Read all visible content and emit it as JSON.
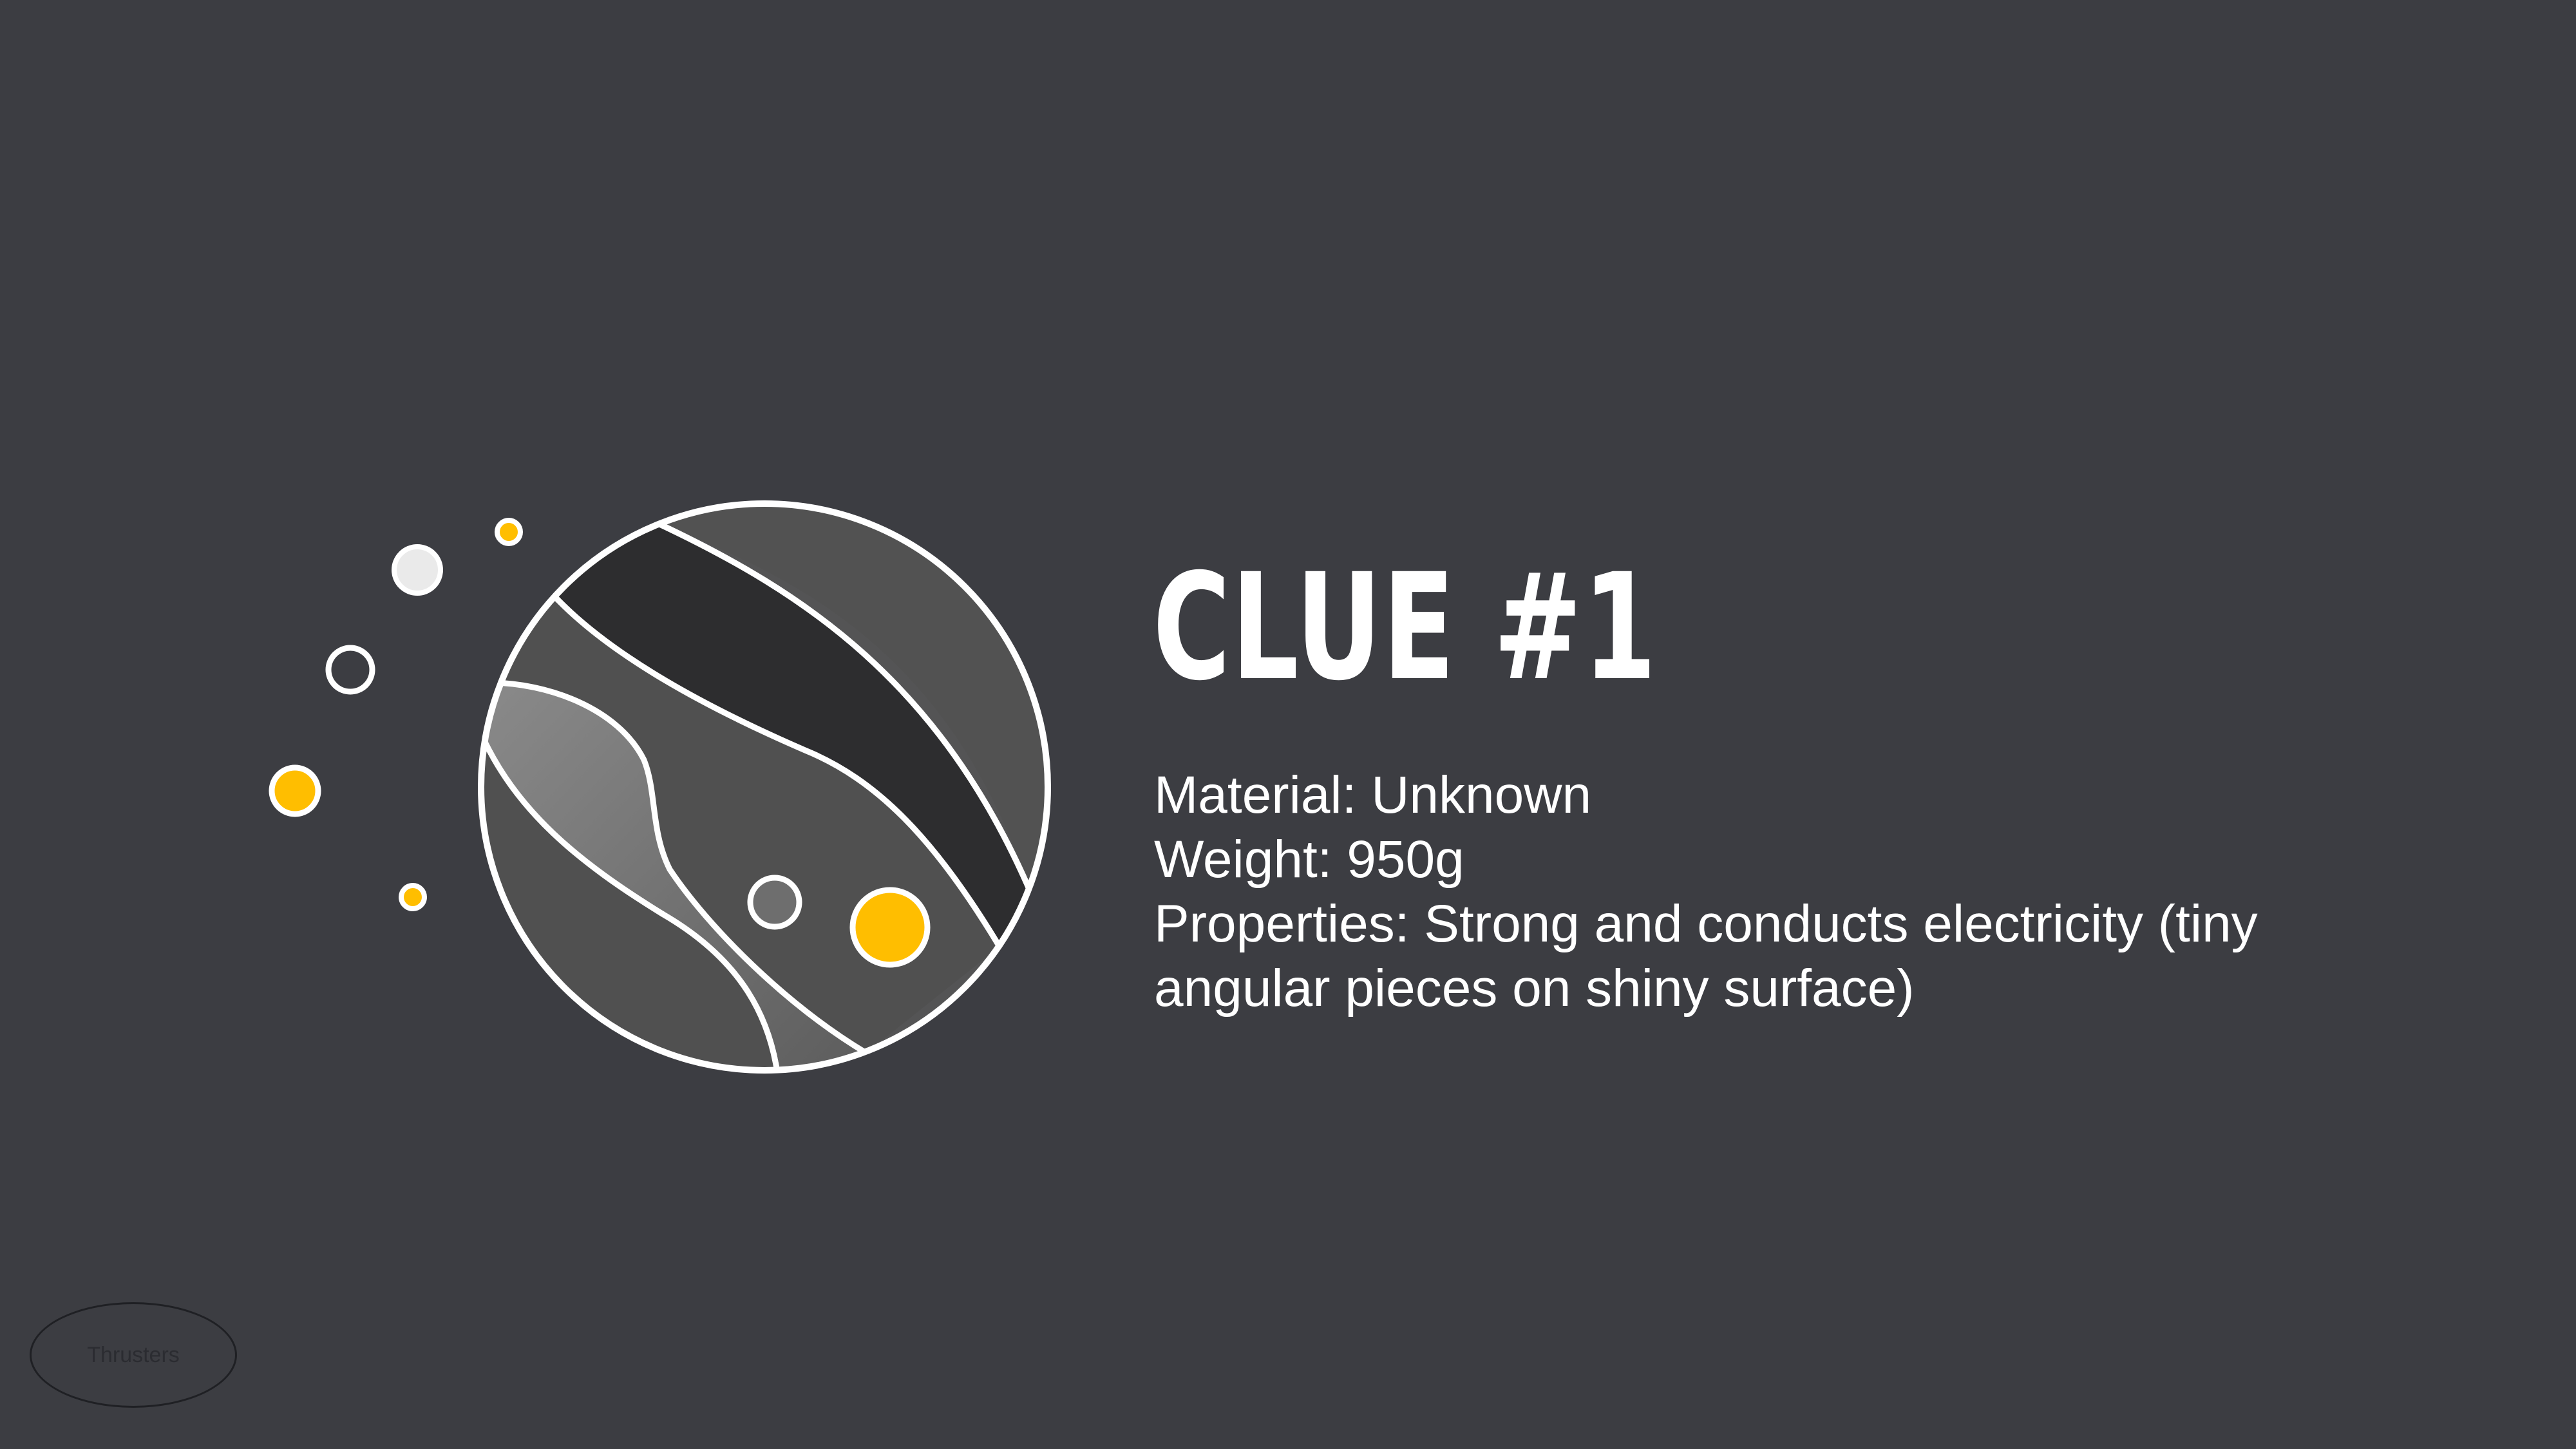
{
  "slide": {
    "title": "CLUE #1",
    "details": [
      "Material: Unknown",
      "Weight: 950g",
      "Properties: Strong and conducts electricity (tiny angular pieces on shiny surface)"
    ]
  },
  "badge": {
    "label": "Thrusters"
  },
  "colors": {
    "background": "#3c3d42",
    "accent": "#ffbe00",
    "outline": "#ffffff",
    "band_dark": "#2d2d2f",
    "band_mid": "#545455",
    "band_light": "#7a7a7a"
  },
  "icons": [
    "planet-icon"
  ]
}
